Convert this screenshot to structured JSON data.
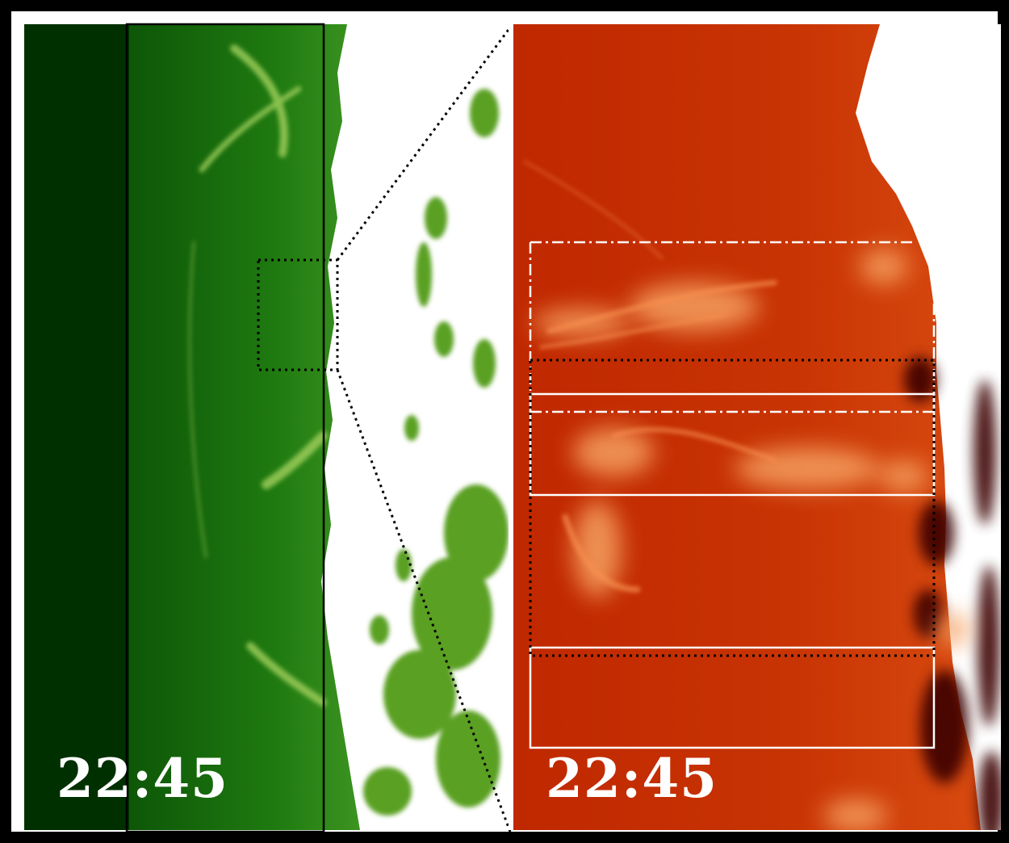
{
  "figure": {
    "left_panel": {
      "timestamp": "22:45",
      "colors": {
        "background": "#003a00",
        "mid": "#1f7a10",
        "bright": "#88c03a",
        "saturated": "#ffffff",
        "grain": "#5aa020"
      }
    },
    "right_panel": {
      "timestamp": "22:45",
      "colors": {
        "background": "#c02a00",
        "bright": "#f08040",
        "dark": "#3a0400",
        "saturated": "#ffffff"
      }
    },
    "overlay_colors": {
      "dark_line": "#000000",
      "light_line": "#ffffff"
    }
  }
}
